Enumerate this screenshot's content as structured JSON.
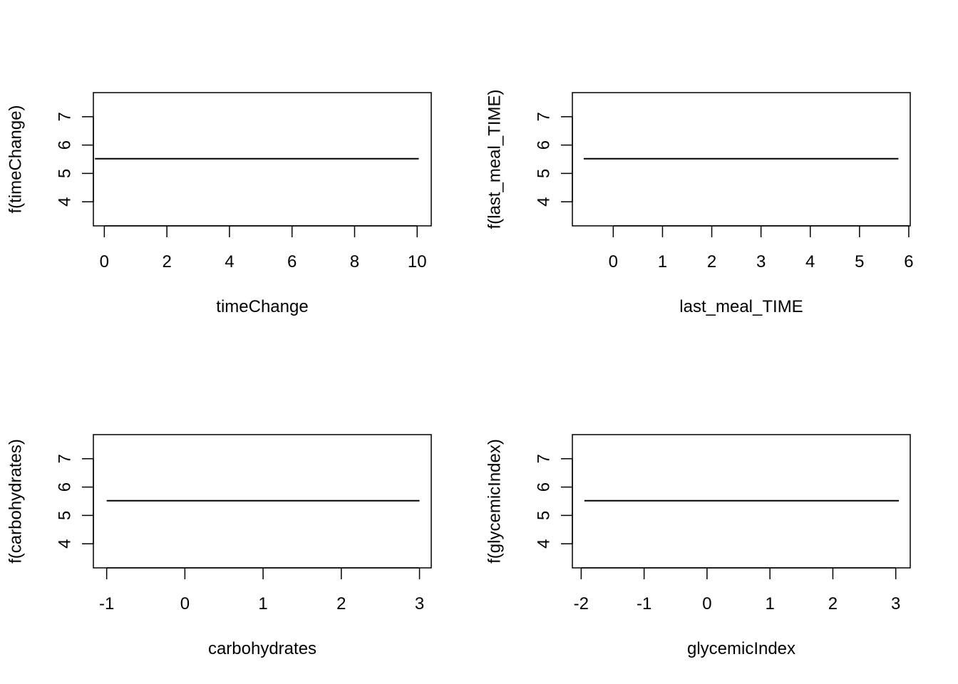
{
  "chart_data": [
    {
      "type": "line",
      "title": "",
      "xlabel": "timeChange",
      "ylabel": "f(timeChange)",
      "xlim": [
        -0.35,
        10.45
      ],
      "ylim": [
        3.15,
        7.85
      ],
      "xticks": [
        0,
        2,
        4,
        6,
        8,
        10
      ],
      "xtick_labels": [
        "0",
        "2",
        "4",
        "6",
        "8",
        "10"
      ],
      "yticks": [
        4,
        5,
        6,
        7
      ],
      "ytick_labels": [
        "4",
        "5",
        "6",
        "7"
      ],
      "grid": false,
      "series": [
        {
          "x": [
            -0.3,
            10.05
          ],
          "y": [
            5.52,
            5.52
          ]
        }
      ]
    },
    {
      "type": "line",
      "title": "",
      "xlabel": "last_meal_TIME",
      "ylabel": "f(last_meal_TIME)",
      "xlim": [
        -0.83,
        6.03
      ],
      "ylim": [
        3.15,
        7.85
      ],
      "xticks": [
        0,
        1,
        2,
        3,
        4,
        5,
        6
      ],
      "xtick_labels": [
        "0",
        "1",
        "2",
        "3",
        "4",
        "5",
        "6"
      ],
      "yticks": [
        4,
        5,
        6,
        7
      ],
      "ytick_labels": [
        "4",
        "5",
        "6",
        "7"
      ],
      "grid": false,
      "series": [
        {
          "x": [
            -0.6,
            5.79
          ],
          "y": [
            5.52,
            5.52
          ]
        }
      ]
    },
    {
      "type": "line",
      "title": "",
      "xlabel": "carbohydrates",
      "ylabel": "f(carbohydrates)",
      "xlim": [
        -1.17,
        3.15
      ],
      "ylim": [
        3.15,
        7.85
      ],
      "xticks": [
        -1,
        0,
        1,
        2,
        3
      ],
      "xtick_labels": [
        "-1",
        "0",
        "1",
        "2",
        "3"
      ],
      "yticks": [
        4,
        5,
        6,
        7
      ],
      "ytick_labels": [
        "4",
        "5",
        "6",
        "7"
      ],
      "grid": false,
      "series": [
        {
          "x": [
            -1.0,
            3.0
          ],
          "y": [
            5.52,
            5.52
          ]
        }
      ]
    },
    {
      "type": "line",
      "title": "",
      "xlabel": "glycemicIndex",
      "ylabel": "f(glycemicIndex)",
      "xlim": [
        -2.14,
        3.23
      ],
      "ylim": [
        3.15,
        7.85
      ],
      "xticks": [
        -2,
        -1,
        0,
        1,
        2,
        3
      ],
      "xtick_labels": [
        "-2",
        "-1",
        "0",
        "1",
        "2",
        "3"
      ],
      "yticks": [
        4,
        5,
        6,
        7
      ],
      "ytick_labels": [
        "4",
        "5",
        "6",
        "7"
      ],
      "grid": false,
      "series": [
        {
          "x": [
            -1.95,
            3.05
          ],
          "y": [
            5.52,
            5.52
          ]
        }
      ]
    }
  ]
}
